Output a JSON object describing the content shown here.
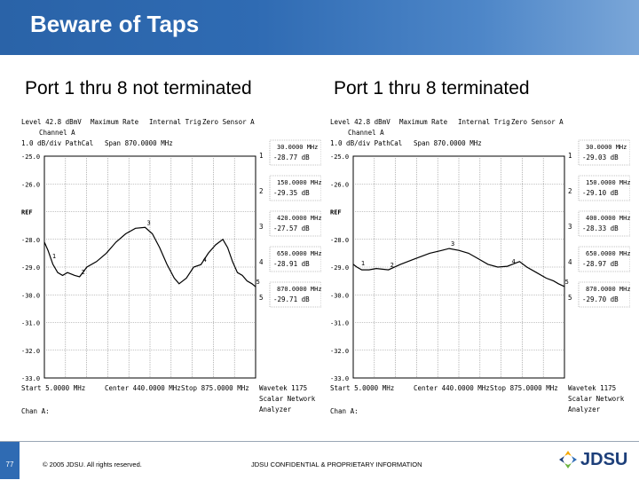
{
  "slide": {
    "title": "Beware of Taps",
    "page_number": "77",
    "copyright": "© 2005 JDSU. All rights reserved.",
    "confidential": "JDSU CONFIDENTIAL & PROPRIETARY INFORMATION",
    "logo_text": "JDSU"
  },
  "chart_data": [
    {
      "type": "line",
      "title": "Port 1 thru 8 not terminated",
      "header": {
        "level": "Level 42.8 dBmV",
        "rate": "Maximum Rate",
        "trig": "Internal Trig",
        "sensor": "Zero Sensor A",
        "channel": "Channel A",
        "scale": "1.0 dB/div  PathCal",
        "span": "Span 870.0000 MHz"
      },
      "y_tick_labels": [
        "-25.0",
        "-26.0",
        "REF",
        "-28.0",
        "-29.0",
        "-30.0",
        "-31.0",
        "-32.0",
        "-33.0"
      ],
      "ylim": [
        -33,
        -25
      ],
      "xlim": [
        5,
        875
      ],
      "footer": {
        "start": "Start 5.0000 MHz",
        "center": "Center 440.0000 MHz",
        "stop": "Stop 875.0000 MHz",
        "chan": "Chan A:"
      },
      "instrument": [
        "Wavetek 1175",
        "Scalar Network",
        "Analyzer"
      ],
      "markers": [
        {
          "id": "1",
          "freq": "30.0000 MHz",
          "value": "-28.77 dB"
        },
        {
          "id": "2",
          "freq": "150.0000 MHz",
          "value": "-29.35 dB"
        },
        {
          "id": "3",
          "freq": "420.0000 MHz",
          "value": "-27.57 dB"
        },
        {
          "id": "4",
          "freq": "650.0000 MHz",
          "value": "-28.91 dB"
        },
        {
          "id": "5",
          "freq": "870.0000 MHz",
          "value": "-29.71 dB"
        }
      ],
      "series": [
        {
          "x": [
            5,
            20,
            40,
            60,
            80,
            100,
            130,
            150,
            180,
            220,
            260,
            300,
            340,
            380,
            420,
            450,
            480,
            510,
            540,
            560,
            590,
            620,
            650,
            680,
            710,
            740,
            760,
            780,
            800,
            820,
            840,
            860,
            875
          ],
          "y": [
            -28.1,
            -28.4,
            -28.9,
            -29.2,
            -29.3,
            -29.2,
            -29.3,
            -29.35,
            -29.0,
            -28.8,
            -28.5,
            -28.1,
            -27.8,
            -27.6,
            -27.57,
            -27.8,
            -28.3,
            -28.9,
            -29.4,
            -29.6,
            -29.4,
            -29.0,
            -28.91,
            -28.5,
            -28.2,
            -28.0,
            -28.3,
            -28.8,
            -29.2,
            -29.3,
            -29.5,
            -29.6,
            -29.71
          ]
        }
      ]
    },
    {
      "type": "line",
      "title": "Port 1 thru 8 terminated",
      "header": {
        "level": "Level 42.8 dBmV",
        "rate": "Maximum Rate",
        "trig": "Internal Trig",
        "sensor": "Zero Sensor A",
        "channel": "Channel A",
        "scale": "1.0 dB/div  PathCal",
        "span": "Span 870.0000 MHz"
      },
      "y_tick_labels": [
        "-25.0",
        "-26.0",
        "REF",
        "-28.0",
        "-29.0",
        "-30.0",
        "-31.0",
        "-32.0",
        "-33.0"
      ],
      "ylim": [
        -33,
        -25
      ],
      "xlim": [
        5,
        875
      ],
      "footer": {
        "start": "Start 5.0000 MHz",
        "center": "Center 440.0000 MHz",
        "stop": "Stop 875.0000 MHz",
        "chan": "Chan A:"
      },
      "instrument": [
        "Wavetek 1175",
        "Scalar Network",
        "Analyzer"
      ],
      "markers": [
        {
          "id": "1",
          "freq": "30.0000 MHz",
          "value": "-29.03 dB"
        },
        {
          "id": "2",
          "freq": "150.0000 MHz",
          "value": "-29.10 dB"
        },
        {
          "id": "3",
          "freq": "400.0000 MHz",
          "value": "-28.33 dB"
        },
        {
          "id": "4",
          "freq": "650.0000 MHz",
          "value": "-28.97 dB"
        },
        {
          "id": "5",
          "freq": "870.0000 MHz",
          "value": "-29.70 dB"
        }
      ],
      "series": [
        {
          "x": [
            5,
            20,
            40,
            70,
            100,
            150,
            200,
            260,
            320,
            370,
            400,
            440,
            480,
            520,
            560,
            600,
            640,
            660,
            690,
            720,
            760,
            800,
            830,
            850,
            875
          ],
          "y": [
            -28.9,
            -29.0,
            -29.1,
            -29.1,
            -29.05,
            -29.1,
            -28.9,
            -28.7,
            -28.5,
            -28.4,
            -28.33,
            -28.4,
            -28.5,
            -28.7,
            -28.9,
            -29.0,
            -28.97,
            -28.9,
            -28.8,
            -29.0,
            -29.2,
            -29.4,
            -29.5,
            -29.6,
            -29.7
          ]
        }
      ]
    }
  ]
}
